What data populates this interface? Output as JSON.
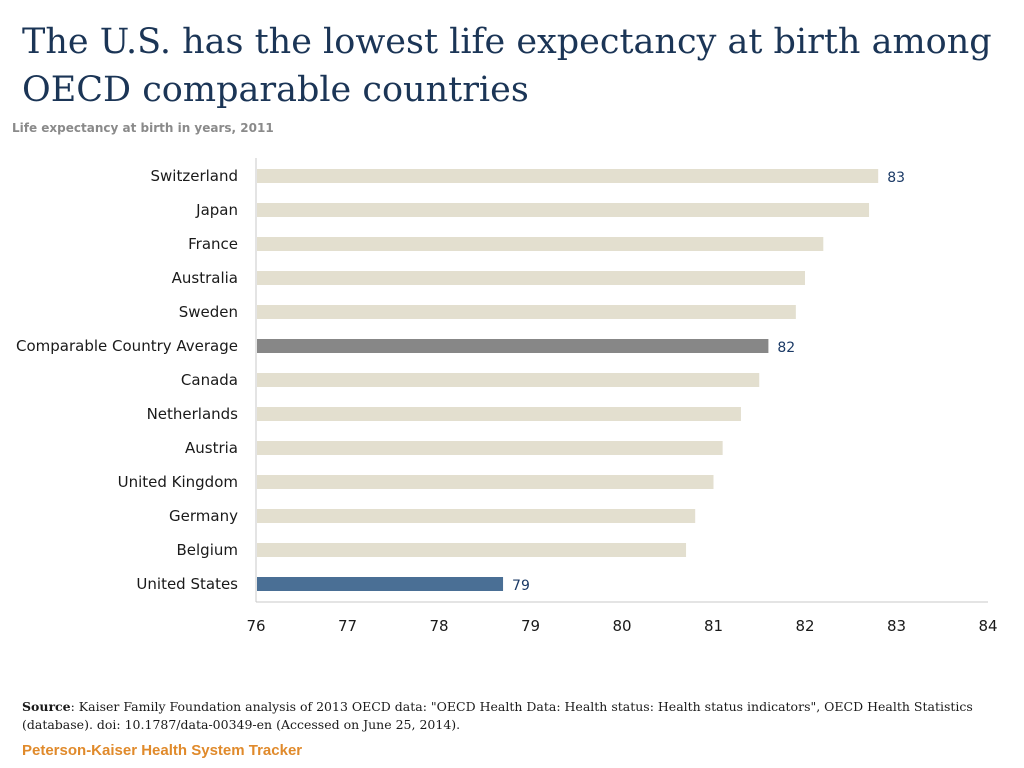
{
  "title": "The U.S. has the lowest life expectancy at birth among OECD comparable countries",
  "subtitle": "Life expectancy at birth in years, 2011",
  "source": {
    "label": "Source",
    "text": ": Kaiser Family Foundation analysis of 2013 OECD data: \"OECD Health Data: Health status: Health status indicators\", OECD Health Statistics (database). doi: 10.1787/data-00349-en (Accessed on June 25, 2014)."
  },
  "brand": "Peterson-Kaiser Health System Tracker",
  "colors": {
    "default_bar": "#e3dfcf",
    "average_bar": "#878787",
    "us_bar": "#4a6f95",
    "label_text": "#1b3a66",
    "axis": "#c8c8c8"
  },
  "chart_data": {
    "type": "bar",
    "orientation": "horizontal",
    "title": "Life expectancy at birth in years, 2011",
    "xlabel": "",
    "ylabel": "",
    "xlim": [
      76,
      84
    ],
    "xticks": [
      76,
      77,
      78,
      79,
      80,
      81,
      82,
      83,
      84
    ],
    "categories": [
      "Switzerland",
      "Japan",
      "France",
      "Australia",
      "Sweden",
      "Comparable Country Average",
      "Canada",
      "Netherlands",
      "Austria",
      "United Kingdom",
      "Germany",
      "Belgium",
      "United States"
    ],
    "values": [
      82.8,
      82.7,
      82.2,
      82.0,
      81.9,
      81.6,
      81.5,
      81.3,
      81.1,
      81.0,
      80.8,
      80.7,
      78.7
    ],
    "highlight": {
      "Comparable Country Average": "average",
      "United States": "us"
    },
    "data_labels": {
      "Switzerland": "83",
      "Comparable Country Average": "82",
      "United States": "79"
    }
  }
}
